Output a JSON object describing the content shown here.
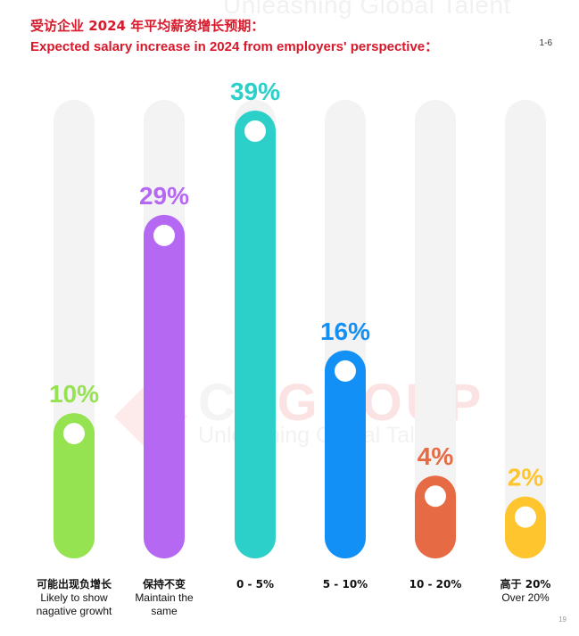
{
  "watermark": {
    "top_tagline": "Unleashing Global Talent",
    "brand_a": "C",
    "brand_b": "P",
    "brand_c": "GROUP",
    "tagline": "Unleashing Global Talent"
  },
  "header": {
    "title_zh": "受访企业 2024 年平均薪资增长预期：",
    "title_en": "Expected salary increase in 2024 from employers' perspective：",
    "code": "1-6"
  },
  "page_number": "19",
  "colors": {
    "title": "#d7192b",
    "track": "#f3f3f3",
    "series": [
      "#95e351",
      "#b569f3",
      "#2dd0c9",
      "#1390f5",
      "#e66a43",
      "#fec52e"
    ]
  },
  "chart_data": {
    "type": "bar",
    "title": "Expected salary increase in 2024 from employers' perspective",
    "categories": [
      {
        "zh": "可能出现负增长",
        "en": "Likely to show nagative growht"
      },
      {
        "zh": "保持不变",
        "en": "Maintain the same"
      },
      {
        "zh": "0 - 5%",
        "en": ""
      },
      {
        "zh": "5 - 10%",
        "en": ""
      },
      {
        "zh": "10 - 20%",
        "en": ""
      },
      {
        "zh": "高于 20%",
        "en": "Over 20%"
      }
    ],
    "values": [
      10,
      29,
      39,
      16,
      4,
      2
    ],
    "value_labels": [
      "10%",
      "29%",
      "39%",
      "16%",
      "4%",
      "2%"
    ],
    "ylim": [
      0,
      39
    ],
    "grid": false,
    "legend": "none"
  }
}
